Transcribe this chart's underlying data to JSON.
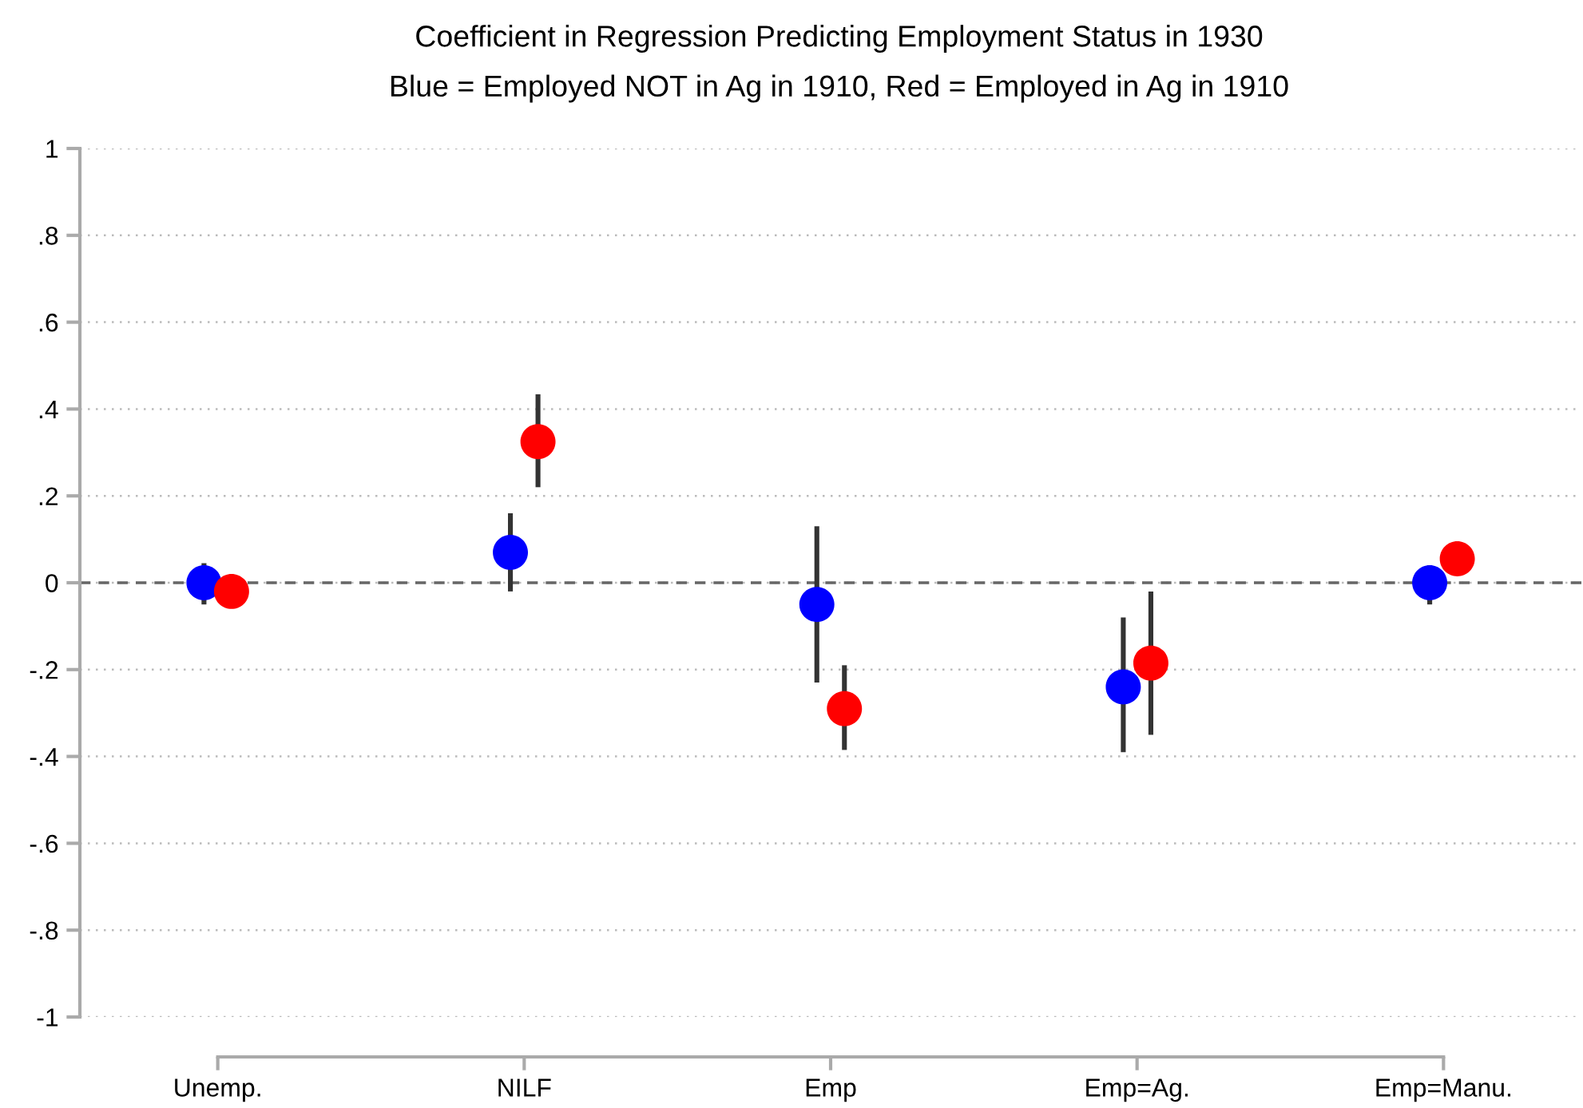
{
  "chart_data": {
    "type": "scatter",
    "title": "Coefficient in Regression Predicting Employment Status in 1930",
    "subtitle": "Blue = Employed NOT in Ag in 1910, Red = Employed in Ag in 1910",
    "series": [
      {
        "color": "#0000ff",
        "values": [
          0.0,
          0.07,
          -0.05,
          -0.24,
          0.0
        ],
        "errors": [
          [
            -0.05,
            0.045
          ],
          [
            -0.02,
            0.16
          ],
          [
            -0.23,
            0.13
          ],
          [
            -0.39,
            -0.08
          ],
          [
            -0.05,
            0.04
          ]
        ]
      },
      {
        "color": "#ff0000",
        "values": [
          -0.02,
          0.325,
          -0.29,
          -0.185,
          0.055
        ],
        "errors": [
          null,
          [
            0.22,
            0.434
          ],
          [
            -0.385,
            -0.19
          ],
          [
            -0.35,
            -0.02
          ],
          null
        ]
      }
    ],
    "categories": [
      "Unemp.",
      "NILF",
      "Emp",
      "Emp=Ag.",
      "Emp=Manu."
    ],
    "ylim": [
      -1,
      1
    ],
    "yticks": [
      {
        "value": -1,
        "label": "-1"
      },
      {
        "value": -0.8,
        "label": "-.8"
      },
      {
        "value": -0.6,
        "label": "-.6"
      },
      {
        "value": -0.4,
        "label": "-.4"
      },
      {
        "value": -0.2,
        "label": "-.2"
      },
      {
        "value": 0,
        "label": "0"
      },
      {
        "value": 0.2,
        "label": ".2"
      },
      {
        "value": 0.4,
        "label": ".4"
      },
      {
        "value": 0.6,
        "label": ".6"
      },
      {
        "value": 0.8,
        "label": ".8"
      },
      {
        "value": 1,
        "label": "1"
      }
    ],
    "grid": "y",
    "marker": "circle",
    "ref_lines": [
      {
        "axis": "y",
        "value": 0,
        "line_style": "dashed",
        "color": "#666666"
      }
    ]
  }
}
